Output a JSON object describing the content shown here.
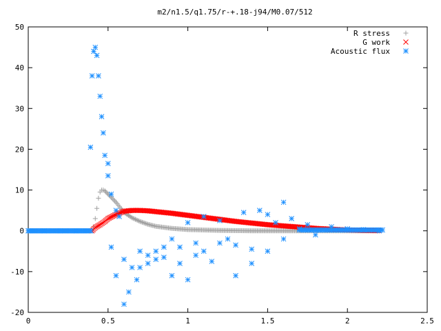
{
  "chart_data": {
    "type": "scatter",
    "title": "m2/n1.5/q1.75/r-+.18-j94/M0.07/512",
    "xlabel": "",
    "ylabel": "",
    "xlim": [
      0,
      2.5
    ],
    "ylim": [
      -20,
      50
    ],
    "x_ticks": [
      "0",
      "0.5",
      "1",
      "1.5",
      "2",
      "2.5"
    ],
    "y_ticks": [
      "-20",
      "-10",
      "0",
      "10",
      "20",
      "30",
      "40",
      "50"
    ],
    "legend_position": "top-right",
    "series": [
      {
        "name": "R stress",
        "marker": "plus",
        "color": "#a0a0a0",
        "x": [
          0.0,
          0.1,
          0.2,
          0.3,
          0.4,
          0.41,
          0.42,
          0.43,
          0.44,
          0.45,
          0.46,
          0.47,
          0.48,
          0.5,
          0.52,
          0.55,
          0.58,
          0.6,
          0.65,
          0.7,
          0.75,
          0.8,
          0.9,
          1.0,
          1.1,
          1.2,
          1.3,
          1.4,
          1.5,
          1.6,
          1.8,
          2.0,
          2.2
        ],
        "y": [
          0.0,
          0.0,
          0.0,
          0.0,
          0.0,
          1.0,
          3.0,
          5.5,
          8.0,
          9.5,
          10.0,
          10.0,
          9.8,
          9.0,
          8.2,
          7.0,
          5.5,
          4.5,
          3.2,
          2.3,
          1.6,
          1.1,
          0.6,
          0.3,
          0.2,
          0.1,
          0.05,
          0.0,
          0.0,
          0.0,
          0.0,
          0.0,
          0.0
        ]
      },
      {
        "name": "G work",
        "marker": "cross",
        "color": "#ff0000",
        "x": [
          0.4,
          0.42,
          0.45,
          0.48,
          0.5,
          0.55,
          0.6,
          0.65,
          0.7,
          0.75,
          0.8,
          0.9,
          1.0,
          1.1,
          1.2,
          1.3,
          1.4,
          1.5,
          1.6,
          1.7,
          1.8,
          1.9,
          2.0,
          2.1,
          2.2
        ],
        "y": [
          0.0,
          0.8,
          1.5,
          2.3,
          3.0,
          4.0,
          4.8,
          5.0,
          5.0,
          4.9,
          4.7,
          4.3,
          3.8,
          3.3,
          2.8,
          2.3,
          1.9,
          1.5,
          1.2,
          0.9,
          0.6,
          0.4,
          0.2,
          0.1,
          0.05
        ]
      },
      {
        "name": "Acoustic flux",
        "marker": "star",
        "color": "#1e90ff",
        "x": [
          0.0,
          0.1,
          0.2,
          0.3,
          0.39,
          0.4,
          0.41,
          0.42,
          0.43,
          0.44,
          0.45,
          0.46,
          0.47,
          0.48,
          0.5,
          0.5,
          0.52,
          0.52,
          0.55,
          0.55,
          0.57,
          0.6,
          0.6,
          0.63,
          0.65,
          0.68,
          0.7,
          0.7,
          0.75,
          0.75,
          0.8,
          0.8,
          0.85,
          0.85,
          0.9,
          0.9,
          0.95,
          0.95,
          1.0,
          1.0,
          1.05,
          1.05,
          1.1,
          1.1,
          1.15,
          1.2,
          1.2,
          1.25,
          1.3,
          1.3,
          1.35,
          1.4,
          1.4,
          1.45,
          1.5,
          1.5,
          1.55,
          1.6,
          1.6,
          1.65,
          1.7,
          1.75,
          1.8,
          1.9,
          2.0,
          2.1,
          2.2
        ],
        "y": [
          0.0,
          0.0,
          0.0,
          0.0,
          20.5,
          38.0,
          44.0,
          45.0,
          43.0,
          38.0,
          33.0,
          28.0,
          24.0,
          18.5,
          16.5,
          13.5,
          9.0,
          -4.0,
          5.0,
          -11.0,
          3.5,
          -18.0,
          -7.0,
          -15.0,
          -9.0,
          -12.0,
          -5.0,
          -9.0,
          -6.0,
          -8.0,
          -5.0,
          -7.0,
          -6.5,
          -4.0,
          -2.0,
          -11.0,
          -8.0,
          -4.0,
          -12.0,
          2.0,
          -6.0,
          -3.0,
          3.5,
          -5.0,
          -7.5,
          2.5,
          -3.0,
          -2.0,
          -11.0,
          -3.5,
          4.5,
          -4.5,
          -8.0,
          5.0,
          4.0,
          -5.0,
          2.0,
          7.0,
          -2.0,
          3.0,
          0.5,
          1.5,
          -1.0,
          1.0,
          0.5,
          0.3,
          0.0
        ]
      }
    ]
  }
}
